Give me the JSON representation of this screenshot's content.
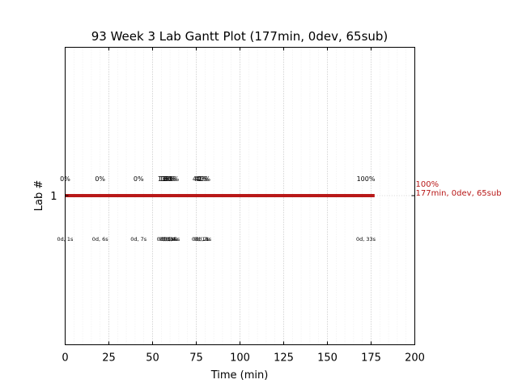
{
  "chart_data": {
    "type": "gantt",
    "title": "93 Week 3 Lab Gantt Plot (177min, 0dev, 65sub)",
    "xlabel": "Time (min)",
    "ylabel": "Lab #",
    "xlim": [
      0,
      200
    ],
    "xticks": [
      0,
      25,
      50,
      75,
      100,
      125,
      150,
      175,
      200
    ],
    "yticks": [
      1
    ],
    "grid": true,
    "bar": {
      "lab": 1,
      "start": 0,
      "end": 177,
      "color": "#b81818"
    },
    "end_annotation": {
      "percent": "100%",
      "summary": "177min, 0dev, 65sub"
    },
    "milestones": [
      {
        "x": 0,
        "percent": "0%",
        "time": "0d, 1s"
      },
      {
        "x": 20,
        "percent": "0%",
        "time": "0d, 6s"
      },
      {
        "x": 42,
        "percent": "0%",
        "time": "0d, 7s"
      },
      {
        "x": 57,
        "percent": "13%",
        "time": "0d, 1s"
      },
      {
        "x": 58,
        "percent": "16%",
        "time": "0d, 2s"
      },
      {
        "x": 59,
        "percent": "18%",
        "time": "0d, 3s"
      },
      {
        "x": 60,
        "percent": "20%",
        "time": "0d, 4s"
      },
      {
        "x": 61,
        "percent": "21%",
        "time": "0d, 5s"
      },
      {
        "x": 77,
        "percent": "40%",
        "time": "0d, 1s"
      },
      {
        "x": 78,
        "percent": "41%",
        "time": "0d, 2s"
      },
      {
        "x": 79,
        "percent": "42%",
        "time": "0d, 3s"
      },
      {
        "x": 172,
        "percent": "100%",
        "time": "0d, 33s"
      }
    ]
  }
}
